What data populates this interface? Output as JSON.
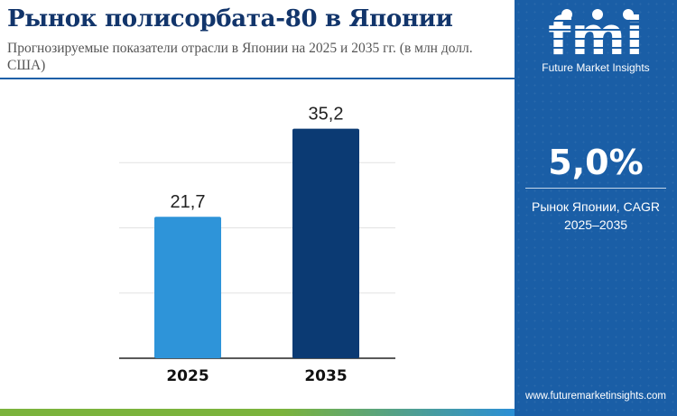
{
  "header": {
    "title": "Рынок полисорбата-80 в Японии",
    "subtitle": "Прогнозируемые показатели отрасли в Японии на 2025 и 2035 гг. (в млн долл. США)"
  },
  "sidebar": {
    "logo_text": "fmi",
    "brand": "Future Market Insights",
    "cagr_value": "5,0%",
    "cagr_label_line1": "Рынок Японии, CAGR",
    "cagr_label_line2": "2025–2035",
    "website": "www.futuremarketinsights.com"
  },
  "chart_data": {
    "type": "bar",
    "categories": [
      "2025",
      "2035"
    ],
    "values": [
      21.7,
      35.2
    ],
    "value_labels": [
      "21,7",
      "35,2"
    ],
    "colors": [
      "#2e94d9",
      "#0b3a73"
    ],
    "ylim": [
      0,
      40
    ],
    "grid": true,
    "xlabel": "",
    "ylabel": ""
  }
}
